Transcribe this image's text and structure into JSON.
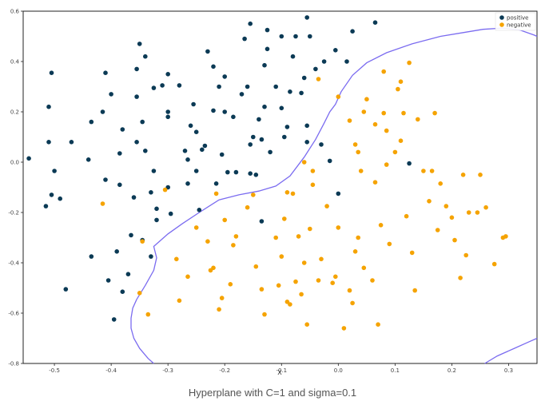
{
  "caption": "Hyperplane with C=1 and sigma=0.1",
  "chart_data": {
    "type": "scatter",
    "xlabel": "X",
    "ylabel": "",
    "xlim": [
      -0.555,
      0.35
    ],
    "ylim": [
      -0.8,
      0.6
    ],
    "x_ticks": [
      -0.5,
      -0.4,
      -0.3,
      -0.2,
      -0.1,
      0.0,
      0.1,
      0.2,
      0.3
    ],
    "x_tick_labels": [
      "-0.5",
      "-0.4",
      "-0.3",
      "-0.2",
      "-0.1",
      "0.0",
      "0.1",
      "0.2",
      "0.3"
    ],
    "y_ticks": [
      -0.8,
      -0.6,
      -0.4,
      -0.2,
      0.0,
      0.2,
      0.4,
      0.6
    ],
    "y_tick_labels": [
      "-0.8",
      "-0.6",
      "-0.4",
      "-0.2",
      "0.0",
      "0.2",
      "0.4",
      "0.6"
    ],
    "grid": false,
    "legend_position": "top-right",
    "colors": {
      "positive": "#0b3a55",
      "negative": "#f5a300",
      "boundary": "#7b6cf0"
    },
    "series": [
      {
        "name": "positive",
        "points": [
          [
            -0.545,
            0.015
          ],
          [
            -0.515,
            -0.175
          ],
          [
            -0.505,
            0.355
          ],
          [
            -0.51,
            0.22
          ],
          [
            -0.51,
            0.08
          ],
          [
            -0.5,
            -0.035
          ],
          [
            -0.505,
            -0.13
          ],
          [
            -0.49,
            -0.145
          ],
          [
            -0.47,
            0.08
          ],
          [
            -0.48,
            -0.505
          ],
          [
            -0.44,
            0.01
          ],
          [
            -0.435,
            0.16
          ],
          [
            -0.435,
            -0.375
          ],
          [
            -0.415,
            0.2
          ],
          [
            -0.41,
            0.355
          ],
          [
            -0.41,
            -0.07
          ],
          [
            -0.405,
            -0.47
          ],
          [
            -0.4,
            0.27
          ],
          [
            -0.395,
            -0.625
          ],
          [
            -0.39,
            -0.355
          ],
          [
            -0.385,
            -0.09
          ],
          [
            -0.385,
            0.035
          ],
          [
            -0.38,
            0.13
          ],
          [
            -0.38,
            -0.515
          ],
          [
            -0.37,
            -0.445
          ],
          [
            -0.365,
            -0.29
          ],
          [
            -0.36,
            -0.14
          ],
          [
            -0.355,
            0.08
          ],
          [
            -0.355,
            0.26
          ],
          [
            -0.355,
            0.37
          ],
          [
            -0.35,
            0.47
          ],
          [
            -0.345,
            0.16
          ],
          [
            -0.345,
            -0.31
          ],
          [
            -0.34,
            0.42
          ],
          [
            -0.34,
            0.045
          ],
          [
            -0.33,
            -0.12
          ],
          [
            -0.33,
            -0.375
          ],
          [
            -0.325,
            0.295
          ],
          [
            -0.325,
            -0.035
          ],
          [
            -0.32,
            -0.185
          ],
          [
            -0.32,
            -0.23
          ],
          [
            -0.31,
            0.305
          ],
          [
            -0.3,
            0.18
          ],
          [
            -0.3,
            0.35
          ],
          [
            -0.3,
            -0.1
          ],
          [
            -0.3,
            0.2
          ],
          [
            -0.295,
            -0.205
          ],
          [
            -0.28,
            0.305
          ],
          [
            -0.27,
            0.045
          ],
          [
            -0.265,
            0.01
          ],
          [
            -0.265,
            -0.085
          ],
          [
            -0.26,
            0.145
          ],
          [
            -0.255,
            0.23
          ],
          [
            -0.25,
            0.12
          ],
          [
            -0.25,
            -0.035
          ],
          [
            -0.245,
            -0.19
          ],
          [
            -0.24,
            0.05
          ],
          [
            -0.235,
            0.065
          ],
          [
            -0.23,
            0.44
          ],
          [
            -0.22,
            0.205
          ],
          [
            -0.22,
            0.38
          ],
          [
            -0.215,
            -0.085
          ],
          [
            -0.21,
            0.3
          ],
          [
            -0.205,
            0.03
          ],
          [
            -0.2,
            0.2
          ],
          [
            -0.2,
            0.34
          ],
          [
            -0.195,
            -0.04
          ],
          [
            -0.185,
            0.18
          ],
          [
            -0.18,
            -0.04
          ],
          [
            -0.17,
            0.27
          ],
          [
            -0.165,
            0.49
          ],
          [
            -0.16,
            0.3
          ],
          [
            -0.155,
            0.55
          ],
          [
            -0.155,
            0.07
          ],
          [
            -0.155,
            -0.045
          ],
          [
            -0.15,
            0.1
          ],
          [
            -0.145,
            -0.05
          ],
          [
            -0.14,
            0.17
          ],
          [
            -0.135,
            -0.235
          ],
          [
            -0.135,
            0.09
          ],
          [
            -0.13,
            0.385
          ],
          [
            -0.13,
            0.22
          ],
          [
            -0.125,
            0.525
          ],
          [
            -0.125,
            0.45
          ],
          [
            -0.12,
            0.04
          ],
          [
            -0.11,
            0.3
          ],
          [
            -0.1,
            0.5
          ],
          [
            -0.1,
            0.215
          ],
          [
            -0.095,
            0.1
          ],
          [
            -0.09,
            0.14
          ],
          [
            -0.085,
            0.28
          ],
          [
            -0.08,
            0.42
          ],
          [
            -0.075,
            0.5
          ],
          [
            -0.065,
            0.275
          ],
          [
            -0.06,
            0.335
          ],
          [
            -0.055,
            0.575
          ],
          [
            -0.055,
            0.08
          ],
          [
            -0.055,
            0.145
          ],
          [
            -0.05,
            0.5
          ],
          [
            -0.04,
            0.37
          ],
          [
            -0.03,
            0.07
          ],
          [
            -0.025,
            0.4
          ],
          [
            -0.015,
            0.005
          ],
          [
            -0.005,
            0.445
          ],
          [
            0.0,
            -0.125
          ],
          [
            0.015,
            0.4
          ],
          [
            0.025,
            0.52
          ],
          [
            0.065,
            0.555
          ],
          [
            0.125,
            -0.005
          ]
        ]
      },
      {
        "name": "negative",
        "points": [
          [
            -0.415,
            -0.165
          ],
          [
            -0.35,
            -0.52
          ],
          [
            -0.345,
            -0.315
          ],
          [
            -0.335,
            -0.605
          ],
          [
            -0.305,
            -0.11
          ],
          [
            -0.285,
            -0.385
          ],
          [
            -0.28,
            -0.55
          ],
          [
            -0.265,
            -0.455
          ],
          [
            -0.25,
            -0.26
          ],
          [
            -0.23,
            -0.315
          ],
          [
            -0.225,
            -0.43
          ],
          [
            -0.215,
            -0.125
          ],
          [
            -0.22,
            -0.42
          ],
          [
            -0.21,
            -0.585
          ],
          [
            -0.205,
            -0.54
          ],
          [
            -0.2,
            -0.23
          ],
          [
            -0.19,
            -0.485
          ],
          [
            -0.185,
            -0.33
          ],
          [
            -0.18,
            -0.295
          ],
          [
            -0.16,
            -0.18
          ],
          [
            -0.15,
            -0.13
          ],
          [
            -0.145,
            -0.415
          ],
          [
            -0.135,
            -0.505
          ],
          [
            -0.13,
            -0.605
          ],
          [
            -0.11,
            -0.3
          ],
          [
            -0.105,
            -0.49
          ],
          [
            -0.1,
            -0.375
          ],
          [
            -0.095,
            -0.225
          ],
          [
            -0.09,
            -0.555
          ],
          [
            -0.085,
            -0.565
          ],
          [
            -0.075,
            -0.475
          ],
          [
            -0.07,
            -0.295
          ],
          [
            -0.065,
            -0.525
          ],
          [
            -0.06,
            -0.4
          ],
          [
            -0.055,
            -0.645
          ],
          [
            -0.05,
            -0.265
          ],
          [
            -0.045,
            -0.09
          ],
          [
            -0.035,
            -0.47
          ],
          [
            -0.03,
            -0.385
          ],
          [
            -0.02,
            -0.175
          ],
          [
            -0.01,
            -0.48
          ],
          [
            -0.005,
            -0.455
          ],
          [
            0.0,
            -0.26
          ],
          [
            0.01,
            -0.66
          ],
          [
            0.02,
            -0.51
          ],
          [
            0.025,
            -0.56
          ],
          [
            0.03,
            -0.355
          ],
          [
            0.035,
            -0.3
          ],
          [
            0.04,
            -0.035
          ],
          [
            0.045,
            -0.42
          ],
          [
            0.045,
            0.2
          ],
          [
            0.05,
            0.25
          ],
          [
            0.06,
            -0.47
          ],
          [
            0.065,
            -0.08
          ],
          [
            0.07,
            -0.645
          ],
          [
            0.075,
            -0.25
          ],
          [
            0.085,
            -0.01
          ],
          [
            0.09,
            -0.325
          ],
          [
            0.1,
            0.04
          ],
          [
            0.105,
            0.29
          ],
          [
            0.11,
            0.32
          ],
          [
            0.115,
            0.195
          ],
          [
            0.12,
            -0.215
          ],
          [
            0.125,
            0.395
          ],
          [
            0.13,
            -0.36
          ],
          [
            0.135,
            -0.51
          ],
          [
            0.14,
            0.17
          ],
          [
            0.15,
            -0.035
          ],
          [
            0.16,
            -0.155
          ],
          [
            0.165,
            -0.035
          ],
          [
            0.17,
            0.195
          ],
          [
            0.175,
            -0.27
          ],
          [
            0.18,
            -0.085
          ],
          [
            0.19,
            -0.175
          ],
          [
            0.2,
            -0.22
          ],
          [
            0.205,
            -0.31
          ],
          [
            0.215,
            -0.46
          ],
          [
            0.22,
            -0.05
          ],
          [
            0.225,
            -0.37
          ],
          [
            0.23,
            -0.2
          ],
          [
            0.245,
            -0.2
          ],
          [
            0.25,
            -0.05
          ],
          [
            0.26,
            -0.18
          ],
          [
            0.275,
            -0.405
          ],
          [
            0.29,
            -0.3
          ],
          [
            0.295,
            -0.295
          ],
          [
            -0.035,
            0.33
          ],
          [
            -0.045,
            -0.035
          ],
          [
            0.0,
            0.26
          ],
          [
            0.02,
            0.165
          ],
          [
            0.03,
            0.07
          ],
          [
            0.035,
            0.04
          ],
          [
            0.065,
            0.15
          ],
          [
            0.08,
            0.36
          ],
          [
            0.08,
            0.195
          ],
          [
            0.085,
            0.125
          ],
          [
            0.11,
            0.085
          ],
          [
            -0.09,
            -0.12
          ],
          [
            -0.08,
            -0.125
          ],
          [
            -0.06,
            0.0
          ]
        ]
      }
    ],
    "decision_boundary": [
      [
        -0.355,
        -0.545
      ],
      [
        -0.362,
        -0.58
      ],
      [
        -0.365,
        -0.62
      ],
      [
        -0.365,
        -0.66
      ],
      [
        -0.36,
        -0.7
      ],
      [
        -0.35,
        -0.74
      ],
      [
        -0.335,
        -0.78
      ],
      [
        -0.325,
        -0.8
      ]
    ],
    "decision_boundary_upper": [
      [
        -0.355,
        -0.545
      ],
      [
        -0.34,
        -0.49
      ],
      [
        -0.325,
        -0.43
      ],
      [
        -0.32,
        -0.38
      ],
      [
        -0.325,
        -0.335
      ],
      [
        -0.3,
        -0.285
      ],
      [
        -0.275,
        -0.245
      ],
      [
        -0.245,
        -0.2
      ],
      [
        -0.21,
        -0.15
      ],
      [
        -0.175,
        -0.13
      ],
      [
        -0.14,
        -0.115
      ],
      [
        -0.11,
        -0.095
      ],
      [
        -0.085,
        -0.055
      ],
      [
        -0.06,
        0.02
      ],
      [
        -0.04,
        0.09
      ],
      [
        -0.025,
        0.155
      ],
      [
        -0.015,
        0.2
      ],
      [
        -0.005,
        0.23
      ],
      [
        0.005,
        0.28
      ],
      [
        0.025,
        0.345
      ],
      [
        0.05,
        0.395
      ],
      [
        0.085,
        0.435
      ],
      [
        0.13,
        0.47
      ],
      [
        0.18,
        0.5
      ],
      [
        0.22,
        0.515
      ],
      [
        0.255,
        0.528
      ],
      [
        0.29,
        0.533
      ],
      [
        0.32,
        0.525
      ],
      [
        0.345,
        0.505
      ],
      [
        0.35,
        0.5
      ]
    ],
    "decision_boundary_lower_right": [
      [
        0.258,
        -0.8
      ],
      [
        0.28,
        -0.77
      ],
      [
        0.31,
        -0.74
      ],
      [
        0.335,
        -0.715
      ],
      [
        0.35,
        -0.7
      ]
    ]
  }
}
